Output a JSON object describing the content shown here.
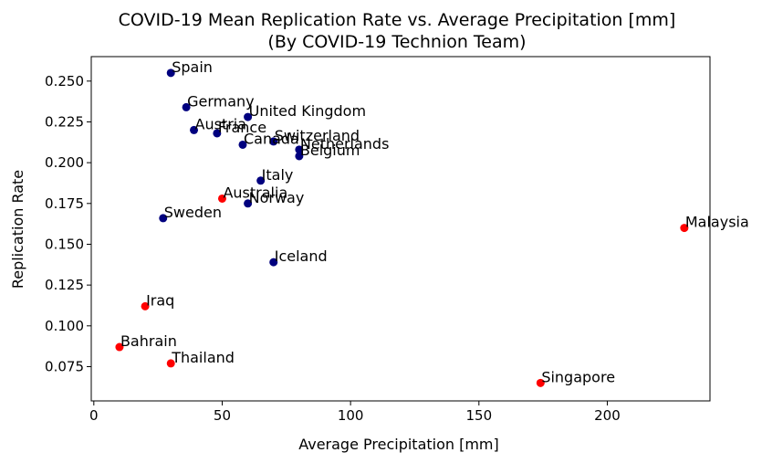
{
  "colors": {
    "series_a": "#00007f",
    "series_b": "#ff0000",
    "axis": "#000000"
  },
  "chart_data": {
    "type": "scatter",
    "title": "COVID-19 Mean Replication Rate vs. Average Precipitation [mm]",
    "subtitle": "(By COVID-19 Technion Team)",
    "xlabel": "Average Precipitation [mm]",
    "ylabel": "Replication Rate",
    "xlim": [
      -1,
      240
    ],
    "ylim": [
      0.054,
      0.265
    ],
    "xticks": [
      0,
      50,
      100,
      150,
      200
    ],
    "yticks": [
      0.075,
      0.1,
      0.125,
      0.15,
      0.175,
      0.2,
      0.225,
      0.25
    ],
    "grid": false,
    "series": [
      {
        "color_key": "series_a",
        "points": [
          {
            "label": "Spain",
            "x": 30,
            "y": 0.255
          },
          {
            "label": "Germany",
            "x": 36,
            "y": 0.234
          },
          {
            "label": "United Kingdom",
            "x": 60,
            "y": 0.228
          },
          {
            "label": "Austria",
            "x": 39,
            "y": 0.22
          },
          {
            "label": "France",
            "x": 48,
            "y": 0.218
          },
          {
            "label": "Switzerland",
            "x": 70,
            "y": 0.213
          },
          {
            "label": "Canada",
            "x": 58,
            "y": 0.211
          },
          {
            "label": "Netherlands",
            "x": 80,
            "y": 0.208
          },
          {
            "label": "Belgium",
            "x": 80,
            "y": 0.204
          },
          {
            "label": "Italy",
            "x": 65,
            "y": 0.189
          },
          {
            "label": "Norway",
            "x": 60,
            "y": 0.175
          },
          {
            "label": "Sweden",
            "x": 27,
            "y": 0.166
          },
          {
            "label": "Iceland",
            "x": 70,
            "y": 0.139
          }
        ]
      },
      {
        "color_key": "series_b",
        "points": [
          {
            "label": "Australia",
            "x": 50,
            "y": 0.178
          },
          {
            "label": "Malaysia",
            "x": 230,
            "y": 0.16
          },
          {
            "label": "Iraq",
            "x": 20,
            "y": 0.112
          },
          {
            "label": "Bahrain",
            "x": 10,
            "y": 0.087
          },
          {
            "label": "Thailand",
            "x": 30,
            "y": 0.077
          },
          {
            "label": "Singapore",
            "x": 174,
            "y": 0.065
          }
        ]
      }
    ]
  }
}
